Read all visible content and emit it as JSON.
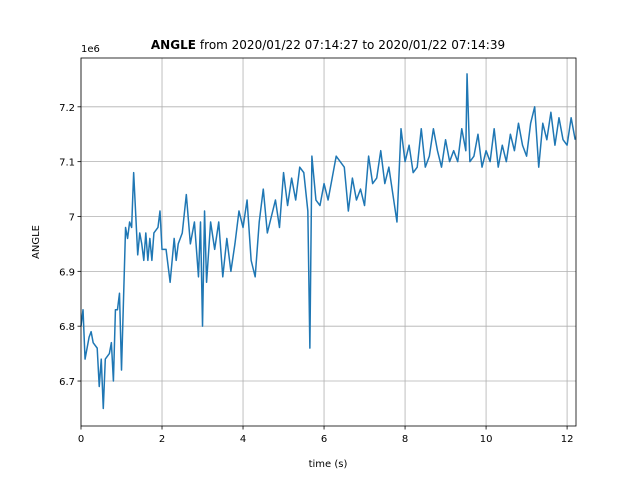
{
  "chart_data": {
    "type": "line",
    "title_bold": "ANGLE",
    "title": "from 2020/01/22 07:14:27 to 2020/01/22 07:14:39",
    "x_label": "time (s)",
    "y_label": "ANGLE",
    "y_offset": "1e6",
    "xlim": [
      0,
      12.22
    ],
    "ylim": [
      6.618,
      7.289
    ],
    "xticks": [
      0,
      2,
      4,
      6,
      8,
      10,
      12
    ],
    "yticks": [
      6.7,
      6.8,
      6.9,
      7.0,
      7.1,
      7.2
    ],
    "grid": true,
    "x": [
      0.0,
      0.05,
      0.1,
      0.2,
      0.25,
      0.3,
      0.4,
      0.45,
      0.5,
      0.55,
      0.6,
      0.7,
      0.75,
      0.8,
      0.85,
      0.9,
      0.95,
      1.0,
      1.1,
      1.15,
      1.2,
      1.25,
      1.3,
      1.4,
      1.45,
      1.5,
      1.55,
      1.6,
      1.65,
      1.7,
      1.75,
      1.8,
      1.9,
      1.95,
      2.0,
      2.1,
      2.2,
      2.3,
      2.35,
      2.4,
      2.5,
      2.6,
      2.7,
      2.8,
      2.9,
      2.95,
      3.0,
      3.05,
      3.1,
      3.2,
      3.3,
      3.4,
      3.5,
      3.6,
      3.7,
      3.8,
      3.9,
      4.0,
      4.1,
      4.2,
      4.3,
      4.4,
      4.5,
      4.6,
      4.7,
      4.8,
      4.9,
      5.0,
      5.1,
      5.2,
      5.3,
      5.4,
      5.5,
      5.6,
      5.65,
      5.7,
      5.8,
      5.9,
      6.0,
      6.1,
      6.2,
      6.3,
      6.4,
      6.5,
      6.6,
      6.7,
      6.8,
      6.9,
      7.0,
      7.1,
      7.2,
      7.3,
      7.4,
      7.5,
      7.6,
      7.7,
      7.8,
      7.9,
      8.0,
      8.1,
      8.2,
      8.3,
      8.4,
      8.5,
      8.6,
      8.7,
      8.8,
      8.9,
      9.0,
      9.1,
      9.2,
      9.3,
      9.4,
      9.5,
      9.53,
      9.6,
      9.7,
      9.8,
      9.9,
      10.0,
      10.1,
      10.2,
      10.3,
      10.4,
      10.5,
      10.6,
      10.7,
      10.8,
      10.9,
      11.0,
      11.1,
      11.2,
      11.3,
      11.4,
      11.5,
      11.6,
      11.7,
      11.8,
      11.9,
      12.0,
      12.1,
      12.2
    ],
    "series": [
      {
        "name": "ANGLE",
        "color": "#1f77b4",
        "values": [
          6.8,
          6.83,
          6.74,
          6.78,
          6.79,
          6.77,
          6.76,
          6.69,
          6.74,
          6.65,
          6.74,
          6.75,
          6.77,
          6.7,
          6.83,
          6.83,
          6.86,
          6.72,
          6.98,
          6.96,
          6.99,
          6.98,
          7.08,
          6.93,
          6.97,
          6.95,
          6.92,
          6.97,
          6.92,
          6.96,
          6.92,
          6.97,
          6.98,
          7.01,
          6.94,
          6.94,
          6.88,
          6.96,
          6.92,
          6.95,
          6.97,
          7.04,
          6.95,
          6.99,
          6.89,
          6.99,
          6.8,
          7.01,
          6.88,
          6.99,
          6.94,
          6.99,
          6.89,
          6.96,
          6.9,
          6.95,
          7.01,
          6.98,
          7.03,
          6.92,
          6.89,
          6.99,
          7.05,
          6.97,
          7.0,
          7.03,
          6.98,
          7.08,
          7.02,
          7.07,
          7.03,
          7.09,
          7.08,
          7.01,
          6.76,
          7.11,
          7.03,
          7.02,
          7.06,
          7.03,
          7.07,
          7.11,
          7.1,
          7.09,
          7.01,
          7.07,
          7.03,
          7.05,
          7.02,
          7.11,
          7.06,
          7.07,
          7.12,
          7.06,
          7.09,
          7.04,
          6.99,
          7.16,
          7.1,
          7.13,
          7.08,
          7.09,
          7.16,
          7.09,
          7.11,
          7.16,
          7.12,
          7.09,
          7.14,
          7.1,
          7.12,
          7.1,
          7.16,
          7.12,
          7.26,
          7.1,
          7.11,
          7.15,
          7.09,
          7.12,
          7.1,
          7.16,
          7.09,
          7.13,
          7.1,
          7.15,
          7.12,
          7.17,
          7.13,
          7.11,
          7.17,
          7.2,
          7.09,
          7.17,
          7.14,
          7.19,
          7.13,
          7.18,
          7.14,
          7.13,
          7.18,
          7.14
        ]
      }
    ]
  }
}
